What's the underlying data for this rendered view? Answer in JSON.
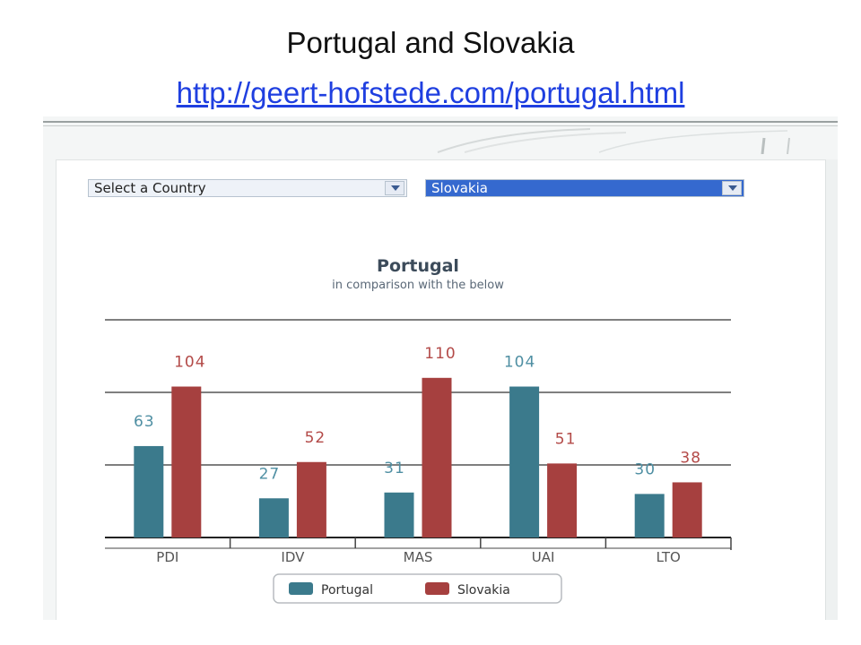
{
  "slide": {
    "title": "Portugal and Slovakia",
    "link": "http://geert-hofstede.com/portugal.html"
  },
  "selectors": {
    "left_value": "Select a Country",
    "right_value": "Slovakia"
  },
  "colors": {
    "portugal": "#3b7a8c",
    "slovakia": "#a6403f",
    "portugal_label": "#4f8fa3",
    "slovakia_label": "#b34a48"
  },
  "chart_data": {
    "type": "bar",
    "title": "Portugal",
    "subtitle": "in comparison with the below",
    "categories": [
      "PDI",
      "IDV",
      "MAS",
      "UAI",
      "LTO"
    ],
    "series": [
      {
        "name": "Portugal",
        "values": [
          63,
          27,
          31,
          104,
          30
        ]
      },
      {
        "name": "Slovakia",
        "values": [
          104,
          52,
          110,
          51,
          38
        ]
      }
    ],
    "ylim": [
      0,
      150
    ],
    "grid": true,
    "legend": "bottom-center",
    "data_labels": true
  }
}
